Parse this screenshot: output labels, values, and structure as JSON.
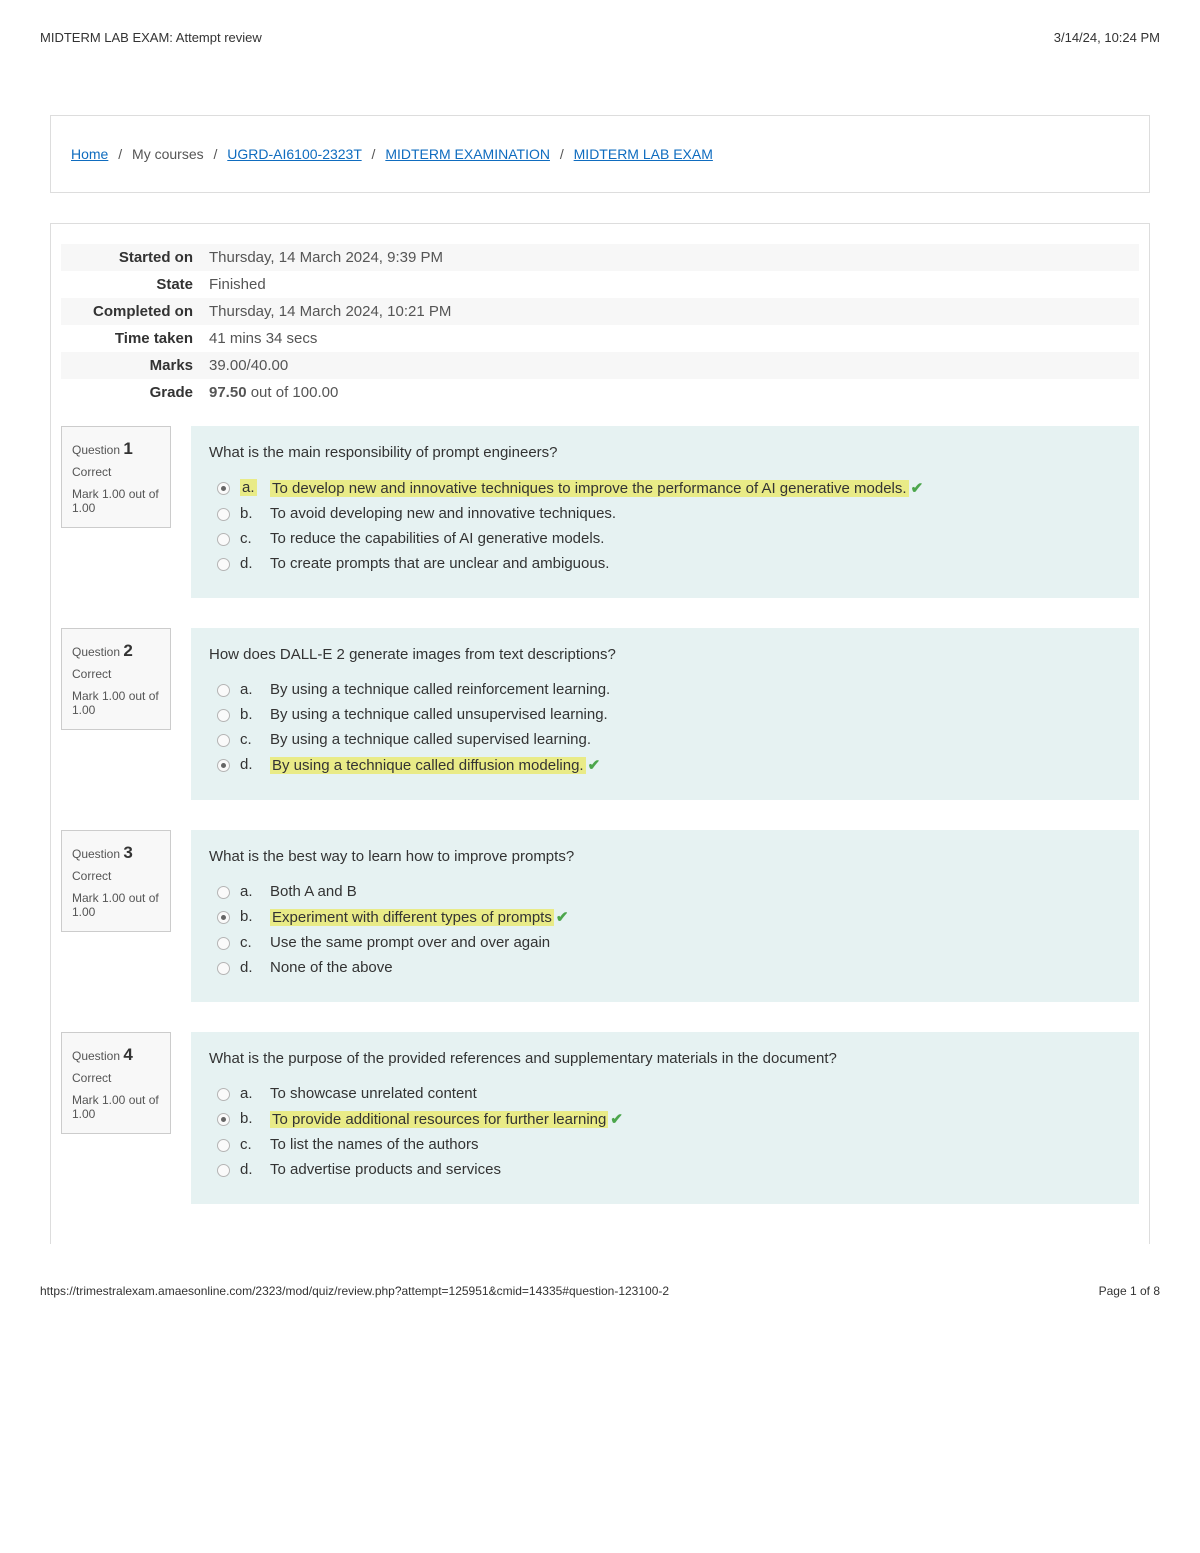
{
  "header": {
    "title": "MIDTERM LAB EXAM: Attempt review",
    "timestamp": "3/14/24, 10:24 PM"
  },
  "breadcrumb": {
    "home": "Home",
    "mycourses": "My courses",
    "course": "UGRD-AI6100-2323T",
    "section": "MIDTERM EXAMINATION",
    "page": "MIDTERM LAB EXAM"
  },
  "summary": {
    "labels": {
      "started": "Started on",
      "state": "State",
      "completed": "Completed on",
      "time": "Time taken",
      "marks": "Marks",
      "grade": "Grade"
    },
    "values": {
      "started": "Thursday, 14 March 2024, 9:39 PM",
      "state": "Finished",
      "completed": "Thursday, 14 March 2024, 10:21 PM",
      "time": "41 mins 34 secs",
      "marks": "39.00/40.00",
      "grade_bold": "97.50",
      "grade_rest": " out of 100.00"
    }
  },
  "question_label": "Question ",
  "mark_label": "Mark 1.00 out of 1.00",
  "correct_label": "Correct",
  "questions": [
    {
      "num": "1",
      "text": "What is the main responsibility of prompt engineers?",
      "answers": [
        {
          "letter": "a.",
          "text": "To develop new and innovative techniques to improve the performance of AI generative models.",
          "selected": true,
          "correct": true,
          "hl_letter": true
        },
        {
          "letter": "b.",
          "text": "To avoid developing new and innovative techniques.",
          "selected": false,
          "correct": false
        },
        {
          "letter": "c.",
          "text": "To reduce the capabilities of AI generative models.",
          "selected": false,
          "correct": false
        },
        {
          "letter": "d.",
          "text": "To create prompts that are unclear and ambiguous.",
          "selected": false,
          "correct": false
        }
      ]
    },
    {
      "num": "2",
      "text": "How does DALL-E 2 generate images from text descriptions?",
      "answers": [
        {
          "letter": "a.",
          "text": "By using a technique called reinforcement learning.",
          "selected": false,
          "correct": false
        },
        {
          "letter": "b.",
          "text": "By using a technique called unsupervised learning.",
          "selected": false,
          "correct": false
        },
        {
          "letter": "c.",
          "text": "By using a technique called supervised learning.",
          "selected": false,
          "correct": false
        },
        {
          "letter": "d.",
          "text": "By using a technique called diffusion modeling.",
          "selected": true,
          "correct": true
        }
      ]
    },
    {
      "num": "3",
      "text": "What is the best way to learn how to improve prompts?",
      "answers": [
        {
          "letter": "a.",
          "text": "Both A and B",
          "selected": false,
          "correct": false
        },
        {
          "letter": "b.",
          "text": "Experiment with different types of prompts",
          "selected": true,
          "correct": true
        },
        {
          "letter": "c.",
          "text": "Use the same prompt over and over again",
          "selected": false,
          "correct": false
        },
        {
          "letter": "d.",
          "text": "None of the above",
          "selected": false,
          "correct": false
        }
      ]
    },
    {
      "num": "4",
      "text": "What is the purpose of the provided references and supplementary materials in the document?",
      "answers": [
        {
          "letter": "a.",
          "text": "To showcase unrelated content",
          "selected": false,
          "correct": false
        },
        {
          "letter": "b.",
          "text": "To provide additional resources for further learning",
          "selected": true,
          "correct": true
        },
        {
          "letter": "c.",
          "text": "To list the names of the authors",
          "selected": false,
          "correct": false
        },
        {
          "letter": "d.",
          "text": "To advertise products and services",
          "selected": false,
          "correct": false
        }
      ]
    }
  ],
  "footer": {
    "url": "https://trimestralexam.amaesonline.com/2323/mod/quiz/review.php?attempt=125951&cmid=14335#question-123100-2",
    "page": "Page 1 of 8"
  }
}
